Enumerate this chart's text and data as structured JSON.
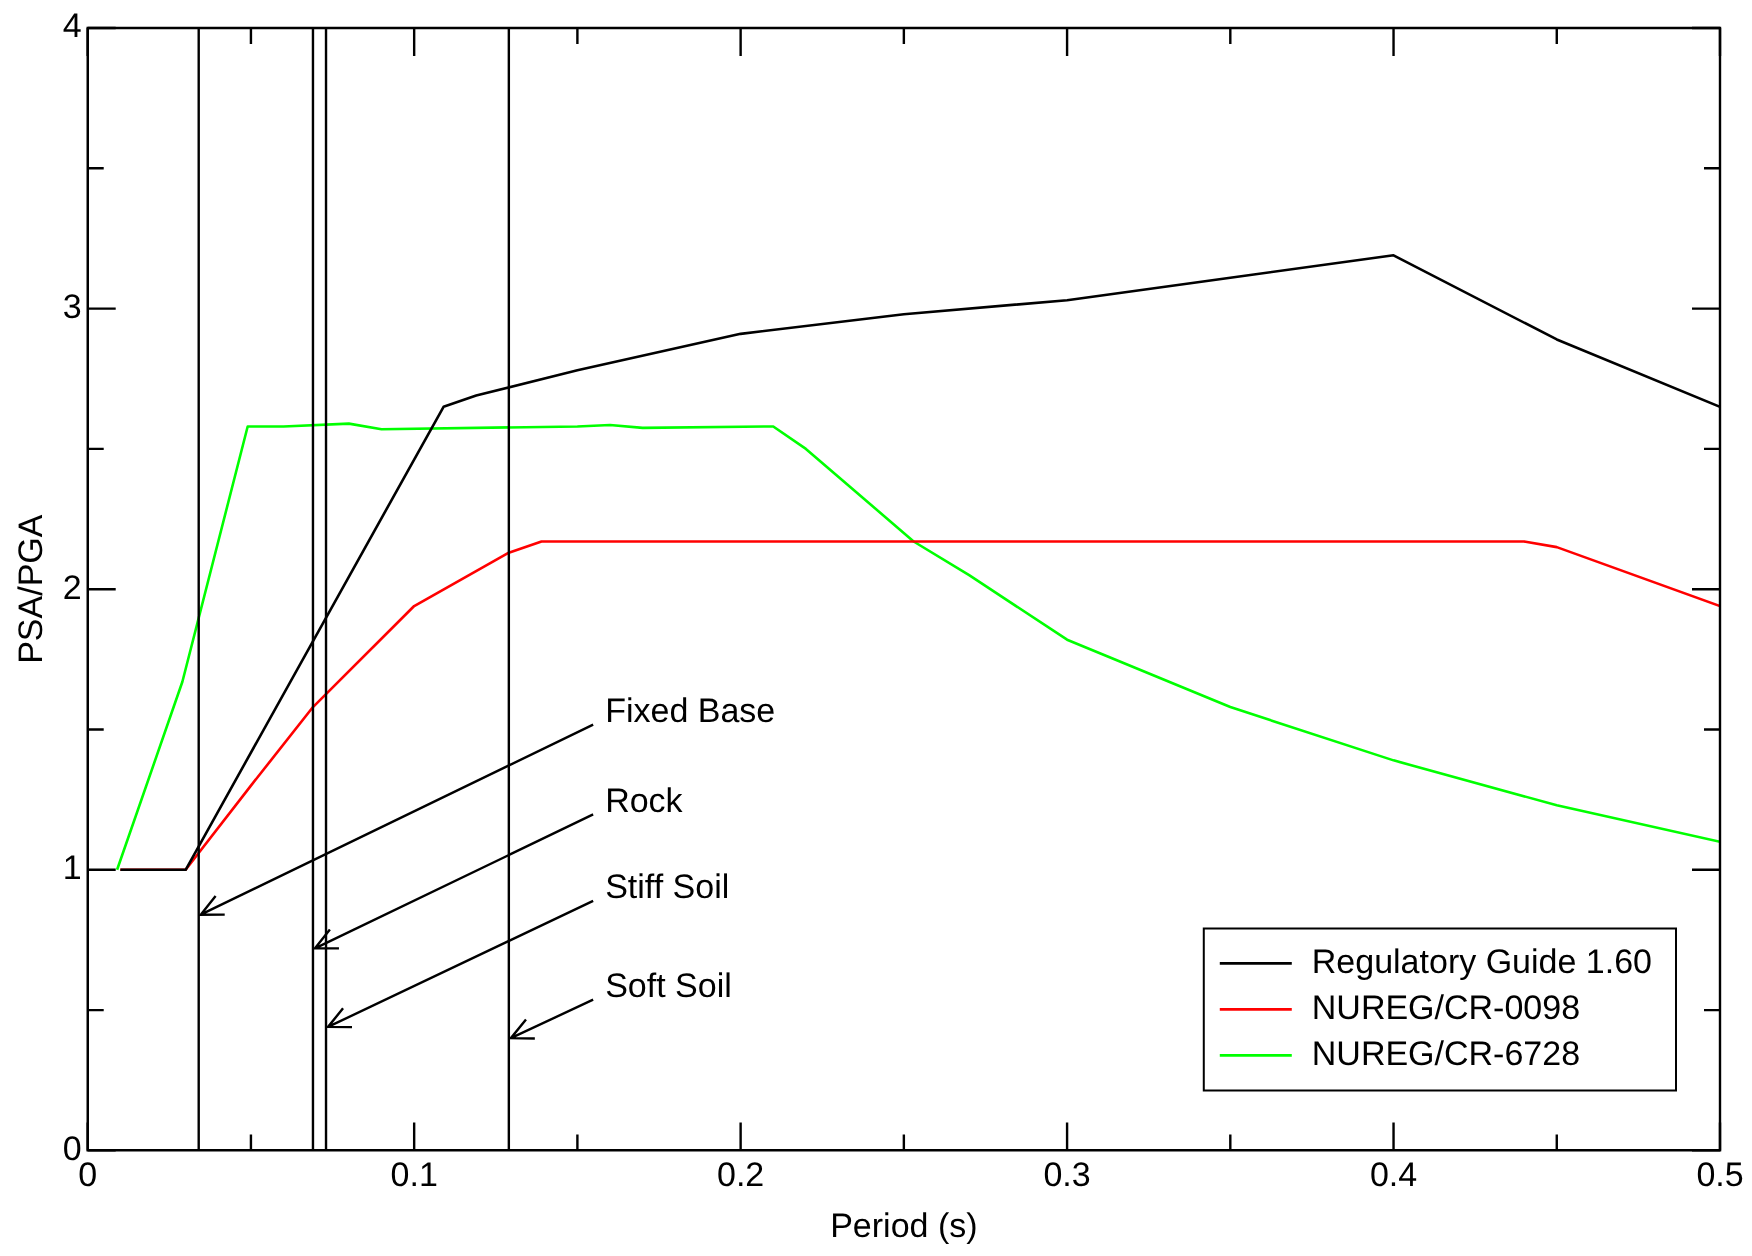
{
  "chart_data": {
    "type": "line",
    "xlabel": "Period (s)",
    "ylabel": "PSA/PGA",
    "xlim": [
      0,
      0.5
    ],
    "ylim": [
      0,
      4
    ],
    "xticks": [
      0,
      {
        "value": 0.05,
        "label": null
      },
      0.1,
      {
        "value": 0.15,
        "label": null
      },
      0.2,
      {
        "value": 0.25,
        "label": null
      },
      0.3,
      {
        "value": 0.35,
        "label": null
      },
      0.4,
      {
        "value": 0.45,
        "label": null
      },
      0.5
    ],
    "yticks": [
      0,
      {
        "value": 0.5,
        "label": null
      },
      1,
      {
        "value": 1.5,
        "label": null
      },
      2,
      {
        "value": 2.5,
        "label": null
      },
      3,
      {
        "value": 3.5,
        "label": null
      },
      4
    ],
    "legend": "bottom right",
    "marker": "none",
    "line_style": "solid",
    "series": [
      {
        "name": "Regulatory Guide 1.60",
        "color": "#000000",
        "x": [
          0.01,
          0.03,
          0.109,
          0.119,
          0.15,
          0.2,
          0.25,
          0.3,
          0.35,
          0.4,
          0.45,
          0.5
        ],
        "values": [
          1,
          1,
          2.65,
          2.69,
          2.78,
          2.91,
          2.98,
          3.03,
          3.11,
          3.19,
          2.89,
          2.65
        ]
      },
      {
        "name": "NUREG/CR-0098",
        "color": "#ff0000",
        "x": [
          0.01,
          0.03,
          0.05,
          0.069,
          0.1,
          0.129,
          0.139,
          0.2,
          0.3,
          0.44,
          0.45,
          0.5
        ],
        "values": [
          1,
          1,
          1.3,
          1.58,
          1.94,
          2.13,
          2.17,
          2.17,
          2.17,
          2.17,
          2.15,
          1.94
        ]
      },
      {
        "name": "NUREG/CR-6728",
        "color": "#00ff00",
        "x": [
          0.009,
          0.029,
          0.049,
          0.06,
          0.08,
          0.09,
          0.15,
          0.16,
          0.17,
          0.21,
          0.22,
          0.23,
          0.253,
          0.27,
          0.3,
          0.35,
          0.4,
          0.45,
          0.5
        ],
        "values": [
          1,
          1.67,
          2.58,
          2.58,
          2.59,
          2.57,
          2.58,
          2.585,
          2.575,
          2.58,
          2.5,
          2.4,
          2.17,
          2.05,
          1.82,
          1.58,
          1.39,
          1.23,
          1.1
        ]
      }
    ],
    "ref_lines": [
      {
        "axis": "x",
        "value": 0.034,
        "label": "Fixed Base",
        "color": "#000000"
      },
      {
        "axis": "x",
        "value": 0.069,
        "label": "Rock",
        "color": "#000000"
      },
      {
        "axis": "x",
        "value": 0.073,
        "label": "Stiff Soil",
        "color": "#000000"
      },
      {
        "axis": "x",
        "value": 0.129,
        "label": "Soft Soil",
        "color": "#000000"
      }
    ]
  }
}
